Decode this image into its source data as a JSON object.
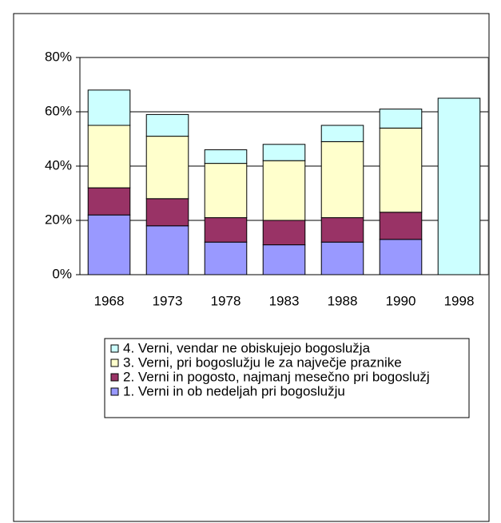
{
  "chart_data": {
    "type": "stacked_bar",
    "categories": [
      "1968",
      "1973",
      "1978",
      "1983",
      "1988",
      "1990",
      "1998"
    ],
    "series": [
      {
        "name": "1. Verni in ob nedeljah pri bogoslužju",
        "color": "#9999ff",
        "values": [
          22,
          18,
          12,
          11,
          12,
          13,
          null
        ]
      },
      {
        "name": "2. Verni in pogosto, najmanj mesečno pri bogoslužj",
        "color": "#993366",
        "values": [
          10,
          10,
          9,
          9,
          9,
          10,
          null
        ]
      },
      {
        "name": "3. Verni, pri bogoslužju le za največje praznike",
        "color": "#ffffcc",
        "values": [
          23,
          23,
          20,
          22,
          28,
          31,
          null
        ]
      },
      {
        "name": "4. Verni, vendar ne obiskujejo bogoslužja",
        "color": "#ccffff",
        "values": [
          13,
          8,
          5,
          6,
          6,
          7,
          65
        ]
      }
    ],
    "ylim": [
      0,
      80
    ],
    "yticks": [
      {
        "value": 0,
        "label": "0%"
      },
      {
        "value": 20,
        "label": "20%"
      },
      {
        "value": 40,
        "label": "40%"
      },
      {
        "value": 60,
        "label": "60%"
      },
      {
        "value": 80,
        "label": "80%"
      }
    ],
    "grid": true
  }
}
